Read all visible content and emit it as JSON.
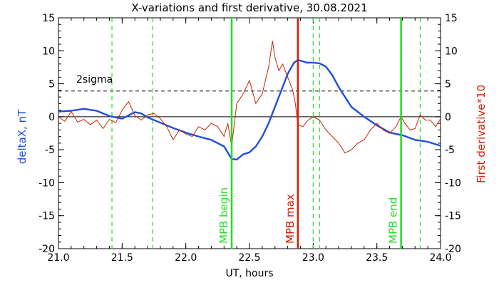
{
  "chart_data": {
    "type": "line",
    "title": "X-variations and first derivative, 30.08.2021",
    "xlabel": "UT, hours",
    "ylabel_left": "deltaX, nT",
    "ylabel_right": "First derivative*10",
    "xlim": [
      21.0,
      24.0
    ],
    "ylim": [
      -20,
      15
    ],
    "x_ticks": [
      "21.0",
      "21.5",
      "22.0",
      "22.5",
      "23.0",
      "23.5",
      "24.0"
    ],
    "y_ticks": [
      "15",
      "10",
      "5",
      "0",
      "-5",
      "-10",
      "-15",
      "-20"
    ],
    "threshold": {
      "label": "2sigma",
      "value": 3.9
    },
    "zero_line": 0,
    "colors": {
      "series1": "#1f4fd8",
      "series2": "#cc2200",
      "green": "#22dd22",
      "red": "#dd1a00"
    },
    "event_lines": [
      {
        "x": 22.36,
        "label": "MPB begin",
        "color": "#22dd22"
      },
      {
        "x": 22.88,
        "label": "MPB max",
        "color": "#dd1a00"
      },
      {
        "x": 23.69,
        "label": "MPB end",
        "color": "#22dd22"
      }
    ],
    "dashed_lines": [
      21.42,
      21.74,
      23.0,
      23.05,
      23.84
    ],
    "series": [
      {
        "name": "deltaX, nT",
        "color": "#1f4fd8",
        "x": [
          21.0,
          21.1,
          21.2,
          21.3,
          21.4,
          21.5,
          21.55,
          21.6,
          21.65,
          21.7,
          21.8,
          21.9,
          22.0,
          22.1,
          22.2,
          22.3,
          22.36,
          22.4,
          22.45,
          22.5,
          22.55,
          22.6,
          22.65,
          22.7,
          22.75,
          22.8,
          22.85,
          22.88,
          22.92,
          22.95,
          23.0,
          23.05,
          23.1,
          23.15,
          23.2,
          23.25,
          23.3,
          23.4,
          23.5,
          23.6,
          23.7,
          23.8,
          23.9,
          24.0
        ],
        "y": [
          0.8,
          0.9,
          1.2,
          0.9,
          0.1,
          -0.3,
          0.2,
          0.7,
          0.5,
          -0.1,
          -0.9,
          -1.7,
          -2.4,
          -3.0,
          -3.5,
          -4.5,
          -6.4,
          -6.5,
          -5.7,
          -5.4,
          -4.5,
          -3.0,
          -1.0,
          1.5,
          4.0,
          6.5,
          8.2,
          8.6,
          8.4,
          8.2,
          8.2,
          8.1,
          7.6,
          6.3,
          4.5,
          3.0,
          1.5,
          0.0,
          -1.3,
          -2.4,
          -2.8,
          -3.5,
          -3.8,
          -4.4
        ]
      },
      {
        "name": "First derivative*10",
        "color": "#cc2200",
        "x": [
          21.0,
          21.05,
          21.1,
          21.15,
          21.2,
          21.25,
          21.3,
          21.35,
          21.4,
          21.45,
          21.5,
          21.55,
          21.6,
          21.65,
          21.7,
          21.75,
          21.8,
          21.85,
          21.9,
          21.95,
          22.0,
          22.05,
          22.1,
          22.15,
          22.2,
          22.25,
          22.3,
          22.33,
          22.36,
          22.4,
          22.45,
          22.5,
          22.55,
          22.6,
          22.65,
          22.68,
          22.7,
          22.73,
          22.76,
          22.8,
          22.84,
          22.86,
          22.88,
          22.92,
          22.96,
          23.0,
          23.05,
          23.1,
          23.15,
          23.2,
          23.25,
          23.3,
          23.35,
          23.4,
          23.45,
          23.5,
          23.55,
          23.6,
          23.65,
          23.69,
          23.72,
          23.76,
          23.8,
          23.84,
          23.88,
          23.92,
          23.96,
          24.0
        ],
        "y": [
          0.0,
          -0.7,
          0.8,
          -0.8,
          -0.4,
          -1.2,
          -0.5,
          -1.8,
          -0.4,
          -0.9,
          1.0,
          2.3,
          0.2,
          -0.5,
          0.3,
          0.5,
          -0.3,
          -1.5,
          -3.5,
          -2.0,
          -2.6,
          -3.0,
          -1.5,
          -2.0,
          -1.0,
          -1.5,
          -3.0,
          -1.0,
          -4.5,
          2.0,
          3.5,
          5.5,
          2.0,
          3.5,
          7.5,
          11.5,
          9.0,
          7.0,
          8.0,
          6.0,
          4.0,
          2.0,
          -1.2,
          -1.5,
          -0.5,
          0.0,
          -0.5,
          -2.0,
          -3.0,
          -4.0,
          -5.5,
          -5.0,
          -4.0,
          -3.5,
          -2.0,
          -1.0,
          -2.0,
          -2.5,
          -1.5,
          0.0,
          -1.0,
          -2.0,
          -1.8,
          0.3,
          -0.5,
          -0.5,
          -1.5,
          -0.3
        ]
      }
    ]
  }
}
